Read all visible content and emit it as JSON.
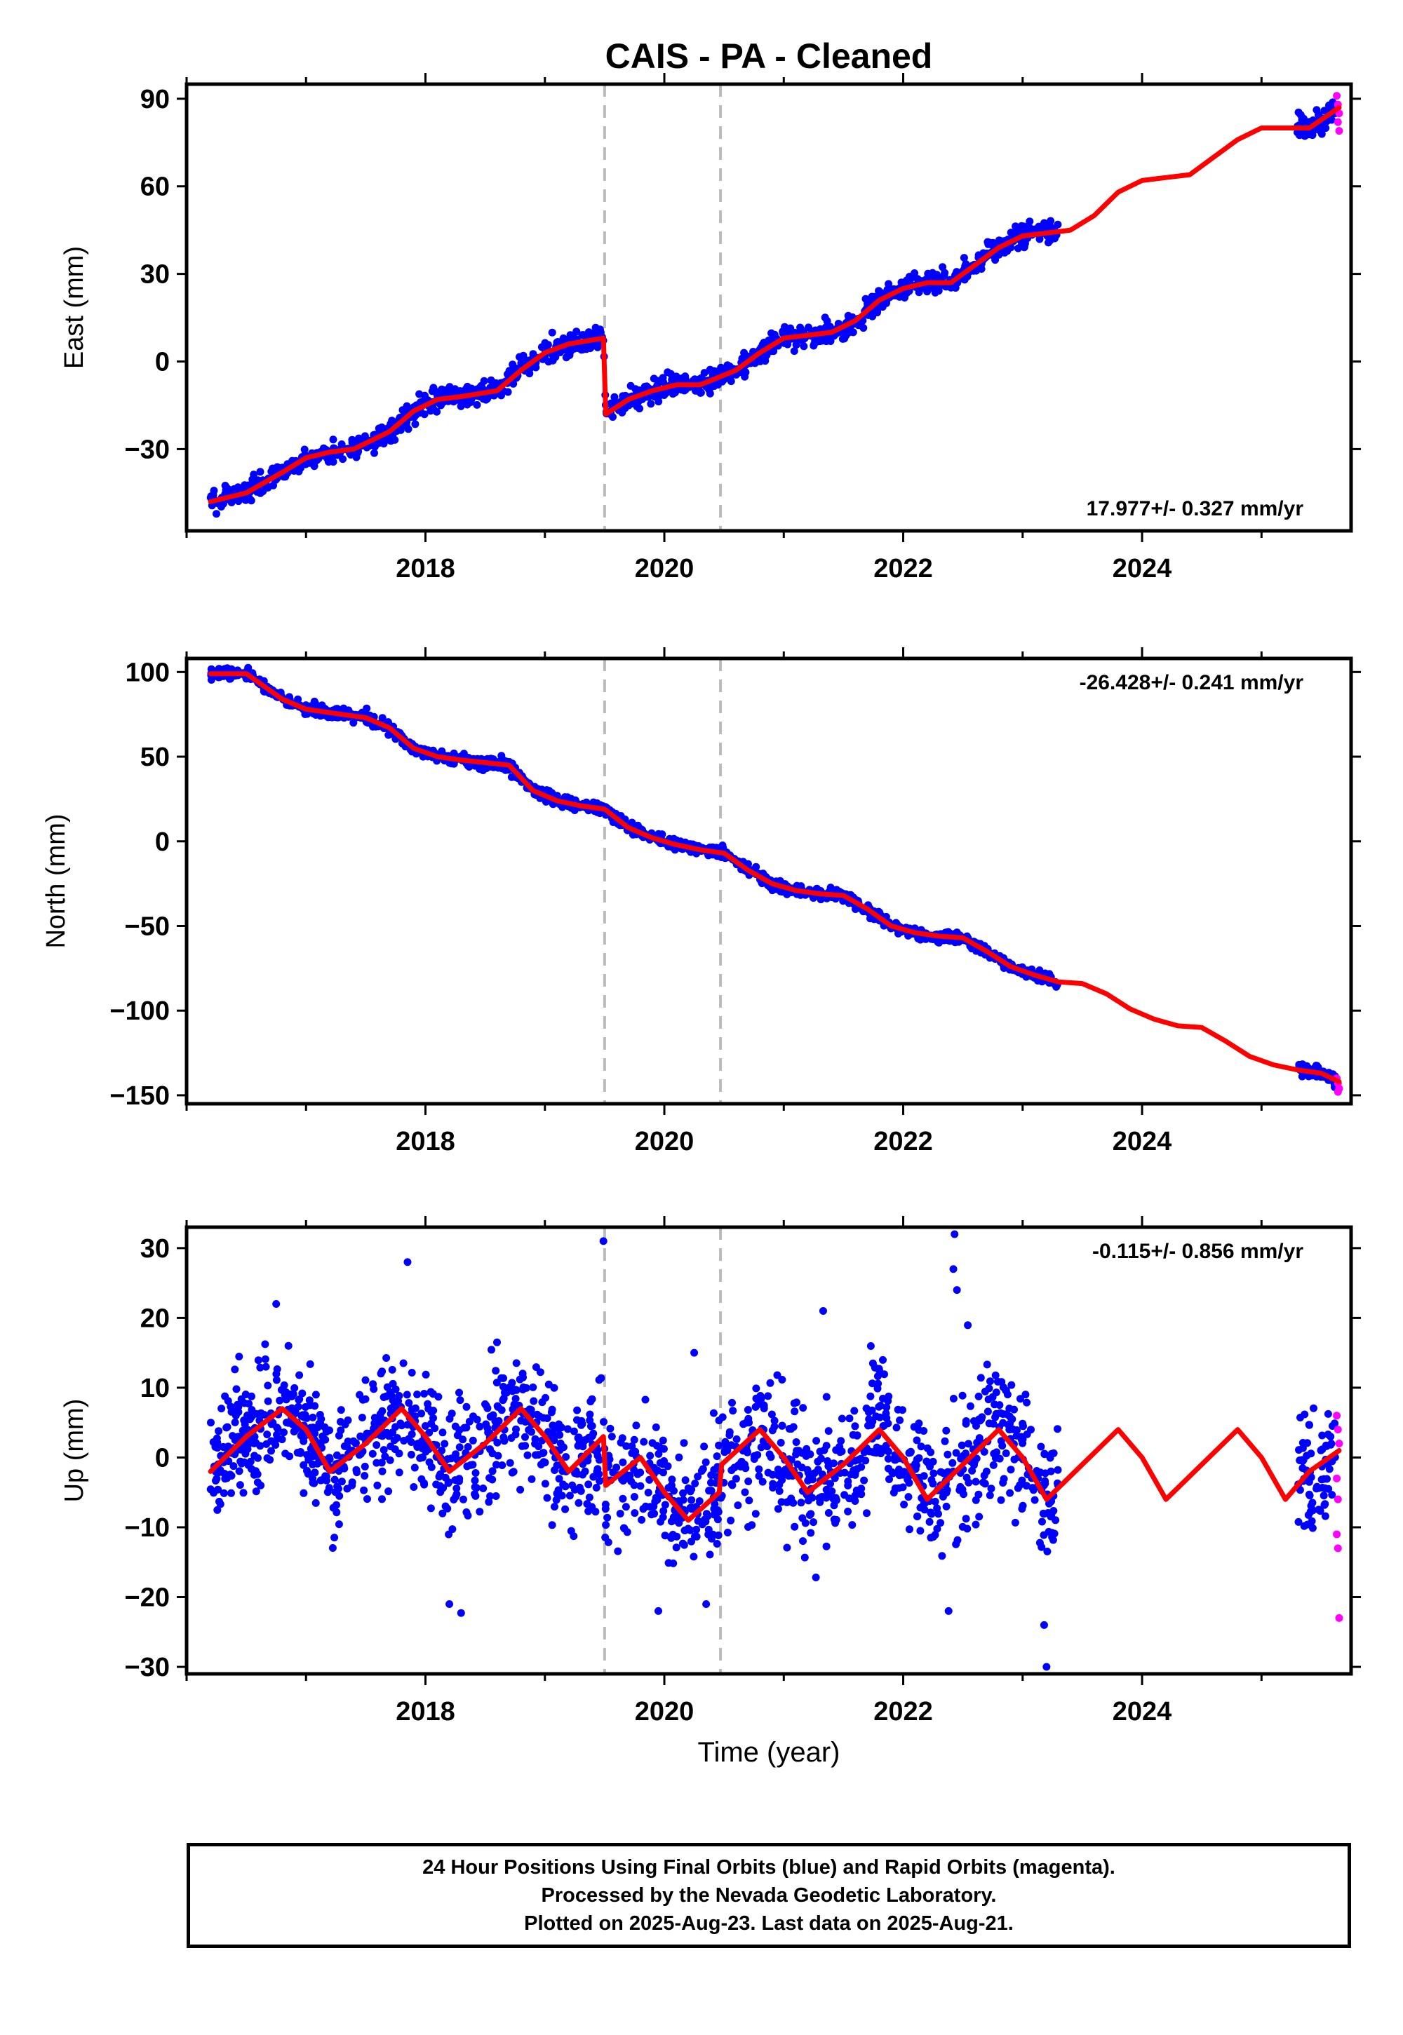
{
  "title": "CAIS  - PA - Cleaned",
  "xlabel": "Time (year)",
  "colors": {
    "final": "#0000ff",
    "rapid": "#ff00ff",
    "model": "#ff0000",
    "breaks": "#bbbbbb"
  },
  "footer": {
    "line1": "24 Hour Positions Using Final Orbits (blue) and Rapid Orbits (magenta).",
    "line2": "Processed by the Nevada Geodetic Laboratory.",
    "line3": "Plotted on 2025-Aug-23. Last data on 2025-Aug-21."
  },
  "chart_data": [
    {
      "type": "scatter",
      "ylabel": "East (mm)",
      "rate_label": "17.977+/- 0.327 mm/yr",
      "xlim": [
        2016.0,
        2025.75
      ],
      "ylim": [
        -58,
        95
      ],
      "yticks": [
        -30,
        0,
        30,
        60,
        90
      ],
      "xticks": [
        2018,
        2020,
        2022,
        2024
      ],
      "breaks": [
        2019.5,
        2020.47
      ],
      "data_span": [
        2016.2,
        2023.3
      ],
      "rapid_span": [
        2025.3,
        2025.65
      ],
      "noise_sd": 1.8,
      "model": {
        "x": [
          2016.2,
          2016.5,
          2016.8,
          2017.0,
          2017.2,
          2017.4,
          2017.7,
          2017.9,
          2018.1,
          2018.3,
          2018.6,
          2018.8,
          2019.0,
          2019.2,
          2019.49,
          2019.51,
          2019.7,
          2019.9,
          2020.1,
          2020.3,
          2020.6,
          2020.8,
          2021.0,
          2021.2,
          2021.4,
          2021.6,
          2021.8,
          2022.0,
          2022.2,
          2022.4,
          2022.6,
          2022.8,
          2023.0,
          2023.2,
          2023.4,
          2023.6,
          2023.8,
          2024.0,
          2024.2,
          2024.4,
          2024.6,
          2024.8,
          2025.0,
          2025.2,
          2025.4,
          2025.65
        ],
        "y": [
          -48,
          -45,
          -38,
          -33,
          -31,
          -30,
          -24,
          -17,
          -13,
          -12,
          -10,
          -3,
          3,
          6,
          8,
          -18,
          -13,
          -10,
          -8,
          -8,
          -3,
          3,
          8,
          9,
          10,
          14,
          21,
          25,
          27,
          27,
          33,
          39,
          43,
          44,
          45,
          50,
          58,
          62,
          63,
          64,
          70,
          76,
          80,
          80,
          80,
          87
        ]
      },
      "rapid_points": [
        {
          "x": 2025.63,
          "y": 91
        },
        {
          "x": 2025.64,
          "y": 88
        },
        {
          "x": 2025.65,
          "y": 85
        },
        {
          "x": 2025.64,
          "y": 82
        },
        {
          "x": 2025.65,
          "y": 79
        }
      ]
    },
    {
      "type": "scatter",
      "ylabel": "North (mm)",
      "rate_label": "-26.428+/- 0.241 mm/yr",
      "xlim": [
        2016.0,
        2025.75
      ],
      "ylim": [
        -155,
        108
      ],
      "yticks": [
        -150,
        -100,
        -50,
        0,
        50,
        100
      ],
      "xticks": [
        2018,
        2020,
        2022,
        2024
      ],
      "breaks": [
        2019.5,
        2020.47
      ],
      "data_span": [
        2016.2,
        2023.3
      ],
      "rapid_span": [
        2025.3,
        2025.65
      ],
      "noise_sd": 1.6,
      "model": {
        "x": [
          2016.2,
          2016.5,
          2016.8,
          2017.0,
          2017.2,
          2017.5,
          2017.7,
          2017.9,
          2018.1,
          2018.3,
          2018.7,
          2018.9,
          2019.1,
          2019.3,
          2019.5,
          2019.7,
          2019.9,
          2020.1,
          2020.3,
          2020.5,
          2020.7,
          2020.9,
          2021.1,
          2021.3,
          2021.5,
          2021.7,
          2021.9,
          2022.1,
          2022.3,
          2022.5,
          2022.7,
          2022.9,
          2023.1,
          2023.3,
          2023.5,
          2023.7,
          2023.9,
          2024.1,
          2024.3,
          2024.5,
          2024.7,
          2024.9,
          2025.1,
          2025.3,
          2025.5,
          2025.65
        ],
        "y": [
          99,
          99,
          84,
          78,
          76,
          73,
          67,
          55,
          50,
          48,
          45,
          30,
          24,
          21,
          19,
          8,
          2,
          -2,
          -5,
          -7,
          -17,
          -25,
          -29,
          -31,
          -32,
          -40,
          -50,
          -54,
          -56,
          -57,
          -65,
          -74,
          -79,
          -83,
          -84,
          -90,
          -99,
          -105,
          -109,
          -110,
          -118,
          -127,
          -132,
          -135,
          -137,
          -142
        ]
      },
      "rapid_points": [
        {
          "x": 2025.63,
          "y": -140
        },
        {
          "x": 2025.64,
          "y": -143
        },
        {
          "x": 2025.65,
          "y": -146
        },
        {
          "x": 2025.64,
          "y": -148
        }
      ]
    },
    {
      "type": "scatter",
      "ylabel": "Up (mm)",
      "rate_label": "-0.115+/- 0.856 mm/yr",
      "xlim": [
        2016.0,
        2025.75
      ],
      "ylim": [
        -31,
        33
      ],
      "yticks": [
        -30,
        -20,
        -10,
        0,
        10,
        20,
        30
      ],
      "xticks": [
        2018,
        2020,
        2022,
        2024
      ],
      "breaks": [
        2019.5,
        2020.47
      ],
      "data_span": [
        2016.2,
        2023.3
      ],
      "rapid_span": [
        2025.3,
        2025.65
      ],
      "noise_sd": 4.5,
      "model": {
        "x": [
          2016.2,
          2016.5,
          2016.8,
          2017.0,
          2017.2,
          2017.5,
          2017.8,
          2018.0,
          2018.2,
          2018.5,
          2018.8,
          2019.0,
          2019.2,
          2019.49,
          2019.51,
          2019.8,
          2020.0,
          2020.2,
          2020.46,
          2020.48,
          2020.8,
          2021.0,
          2021.2,
          2021.5,
          2021.8,
          2022.0,
          2022.2,
          2022.5,
          2022.8,
          2023.0,
          2023.2,
          2023.5,
          2023.8,
          2024.0,
          2024.2,
          2024.5,
          2024.8,
          2025.0,
          2025.2,
          2025.4,
          2025.65
        ],
        "y": [
          -2,
          3,
          7,
          4,
          -2,
          2,
          7,
          3,
          -2,
          2,
          7,
          3,
          -2,
          3,
          -4,
          0,
          -5,
          -9,
          -5,
          -1,
          4,
          0,
          -5,
          -1,
          4,
          0,
          -6,
          -1,
          4,
          0,
          -6,
          -1,
          4,
          0,
          -6,
          -1,
          4,
          0,
          -6,
          -2,
          1
        ]
      },
      "rapid_points": [
        {
          "x": 2025.63,
          "y": 6
        },
        {
          "x": 2025.64,
          "y": 4
        },
        {
          "x": 2025.65,
          "y": 2
        },
        {
          "x": 2025.63,
          "y": -3
        },
        {
          "x": 2025.64,
          "y": -6
        },
        {
          "x": 2025.63,
          "y": -11
        },
        {
          "x": 2025.64,
          "y": -13
        },
        {
          "x": 2025.65,
          "y": -23
        }
      ],
      "outliers": [
        {
          "x": 2019.49,
          "y": 31
        },
        {
          "x": 2022.43,
          "y": 32
        },
        {
          "x": 2022.42,
          "y": 27
        },
        {
          "x": 2022.45,
          "y": 24
        },
        {
          "x": 2017.85,
          "y": 28
        },
        {
          "x": 2016.75,
          "y": 22
        },
        {
          "x": 2018.2,
          "y": -21
        },
        {
          "x": 2022.38,
          "y": -22
        },
        {
          "x": 2023.2,
          "y": -30
        },
        {
          "x": 2023.18,
          "y": -24
        },
        {
          "x": 2019.95,
          "y": -22
        },
        {
          "x": 2020.35,
          "y": -21
        },
        {
          "x": 2021.33,
          "y": 21
        },
        {
          "x": 2020.25,
          "y": 15
        }
      ]
    }
  ]
}
